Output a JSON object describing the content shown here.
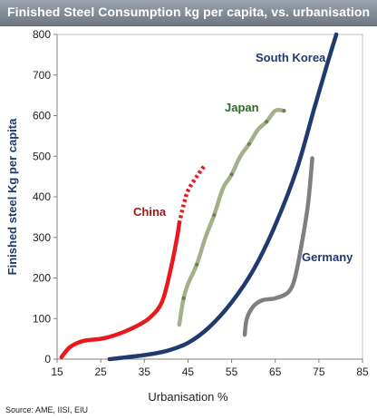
{
  "chart_data": {
    "type": "line",
    "title": "Finished Steel Consumption kg per capita, vs. urbanisation",
    "xlabel": "Urbanisation %",
    "ylabel": "Finished steel Kg per capita",
    "xlim": [
      15,
      85
    ],
    "ylim": [
      0,
      800
    ],
    "x_ticks": [
      15,
      25,
      35,
      45,
      55,
      65,
      75,
      85
    ],
    "y_ticks": [
      0,
      100,
      200,
      300,
      400,
      500,
      600,
      700,
      800
    ],
    "grid": false,
    "legend": "none (series labelled directly on chart)",
    "series": [
      {
        "name": "China",
        "color": "#e8191e",
        "label_color": "#a31515",
        "style": "solid then dotted (projection)",
        "points": [
          [
            16,
            5
          ],
          [
            18,
            30
          ],
          [
            21,
            45
          ],
          [
            25,
            50
          ],
          [
            28,
            58
          ],
          [
            32,
            75
          ],
          [
            36,
            100
          ],
          [
            39,
            140
          ],
          [
            41,
            220
          ],
          [
            42.5,
            300
          ],
          [
            43,
            335
          ]
        ],
        "projection": [
          [
            43,
            335
          ],
          [
            44,
            380
          ],
          [
            45,
            415
          ],
          [
            47,
            450
          ],
          [
            49,
            480
          ]
        ]
      },
      {
        "name": "Japan",
        "color": "#a3b08a",
        "label_color": "#2b6a2b",
        "style": "solid with markers",
        "points": [
          [
            43,
            85
          ],
          [
            44,
            150
          ],
          [
            45,
            185
          ],
          [
            47,
            233
          ],
          [
            49,
            300
          ],
          [
            51,
            355
          ],
          [
            53,
            420
          ],
          [
            55,
            455
          ],
          [
            57,
            500
          ],
          [
            59,
            530
          ],
          [
            61,
            565
          ],
          [
            63,
            585
          ],
          [
            65,
            612
          ],
          [
            67,
            612
          ]
        ]
      },
      {
        "name": "South Korea",
        "color": "#1f3a6e",
        "label_color": "#1f3a6e",
        "style": "solid",
        "points": [
          [
            27,
            0
          ],
          [
            35,
            10
          ],
          [
            40,
            20
          ],
          [
            45,
            40
          ],
          [
            50,
            80
          ],
          [
            55,
            140
          ],
          [
            60,
            220
          ],
          [
            65,
            330
          ],
          [
            70,
            470
          ],
          [
            74,
            620
          ],
          [
            77,
            730
          ],
          [
            79,
            800
          ]
        ]
      },
      {
        "name": "Germany",
        "color": "#7f7f7f",
        "label_color": "#1f3a6e",
        "style": "solid",
        "points": [
          [
            58,
            60
          ],
          [
            58.5,
            100
          ],
          [
            60,
            130
          ],
          [
            62,
            145
          ],
          [
            65,
            150
          ],
          [
            68,
            165
          ],
          [
            69.5,
            200
          ],
          [
            71,
            280
          ],
          [
            72.5,
            380
          ],
          [
            73.5,
            495
          ]
        ]
      }
    ],
    "source": "Source: AME, IISI, EIU"
  }
}
